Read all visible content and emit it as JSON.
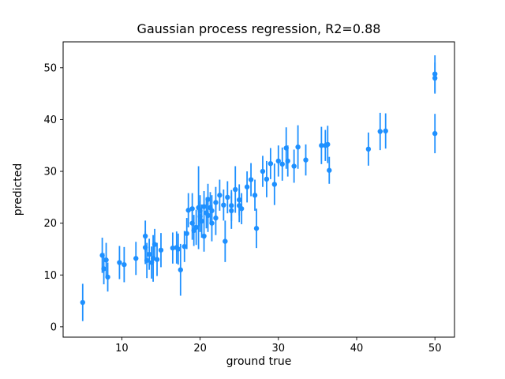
{
  "figure": {
    "background": "#ffffff"
  },
  "chart_data": {
    "type": "scatter",
    "title": "Gaussian process regression, R2=0.88",
    "xlabel": "ground true",
    "ylabel": "predicted",
    "marker_color": "#1E90FF",
    "error_bars": true,
    "grid": false,
    "xlim": [
      2.5,
      52.5
    ],
    "ylim": [
      -2,
      55
    ],
    "xticks": [
      10,
      20,
      30,
      40,
      50
    ],
    "yticks": [
      0,
      10,
      20,
      30,
      40,
      50
    ],
    "points": [
      {
        "x": 5.0,
        "y": 4.7,
        "err": 3.6
      },
      {
        "x": 7.5,
        "y": 13.8,
        "err": 3.4
      },
      {
        "x": 7.7,
        "y": 11.2,
        "err": 3.0
      },
      {
        "x": 8.0,
        "y": 12.9,
        "err": 3.3
      },
      {
        "x": 8.2,
        "y": 9.6,
        "err": 2.8
      },
      {
        "x": 9.7,
        "y": 12.4,
        "err": 3.2
      },
      {
        "x": 10.3,
        "y": 12.0,
        "err": 3.4
      },
      {
        "x": 11.8,
        "y": 13.2,
        "err": 3.2
      },
      {
        "x": 13.0,
        "y": 17.5,
        "err": 3.0
      },
      {
        "x": 13.0,
        "y": 15.3,
        "err": 3.2
      },
      {
        "x": 13.2,
        "y": 12.8,
        "err": 3.4
      },
      {
        "x": 13.5,
        "y": 14.0,
        "err": 3.0
      },
      {
        "x": 13.8,
        "y": 12.4,
        "err": 3.1
      },
      {
        "x": 14.0,
        "y": 13.2,
        "err": 4.5
      },
      {
        "x": 14.2,
        "y": 15.9,
        "err": 3.0
      },
      {
        "x": 14.5,
        "y": 13.0,
        "err": 3.2
      },
      {
        "x": 15.0,
        "y": 14.8,
        "err": 3.3
      },
      {
        "x": 16.5,
        "y": 15.2,
        "err": 3.0
      },
      {
        "x": 17.0,
        "y": 15.3,
        "err": 3.1
      },
      {
        "x": 17.2,
        "y": 15.0,
        "err": 3.0
      },
      {
        "x": 17.5,
        "y": 11.0,
        "err": 5.0
      },
      {
        "x": 18.0,
        "y": 15.5,
        "err": 3.0
      },
      {
        "x": 18.3,
        "y": 18.0,
        "err": 3.0
      },
      {
        "x": 18.5,
        "y": 22.5,
        "err": 3.3
      },
      {
        "x": 19.0,
        "y": 22.8,
        "err": 3.0
      },
      {
        "x": 19.0,
        "y": 20.0,
        "err": 3.2
      },
      {
        "x": 19.2,
        "y": 18.6,
        "err": 3.0
      },
      {
        "x": 19.8,
        "y": 23.0,
        "err": 8.0
      },
      {
        "x": 19.5,
        "y": 19.2,
        "err": 3.4
      },
      {
        "x": 20.0,
        "y": 22.4,
        "err": 3.0
      },
      {
        "x": 20.0,
        "y": 21.3,
        "err": 3.0
      },
      {
        "x": 20.2,
        "y": 20.4,
        "err": 3.2
      },
      {
        "x": 20.5,
        "y": 23.2,
        "err": 3.0
      },
      {
        "x": 20.5,
        "y": 17.5,
        "err": 3.0
      },
      {
        "x": 20.8,
        "y": 22.0,
        "err": 3.0
      },
      {
        "x": 21.0,
        "y": 24.6,
        "err": 3.0
      },
      {
        "x": 21.0,
        "y": 21.5,
        "err": 3.2
      },
      {
        "x": 21.3,
        "y": 23.0,
        "err": 3.0
      },
      {
        "x": 21.5,
        "y": 22.4,
        "err": 3.0
      },
      {
        "x": 21.5,
        "y": 20.0,
        "err": 3.5
      },
      {
        "x": 22.0,
        "y": 24.0,
        "err": 3.0
      },
      {
        "x": 22.0,
        "y": 21.0,
        "err": 3.3
      },
      {
        "x": 22.5,
        "y": 25.4,
        "err": 3.0
      },
      {
        "x": 23.0,
        "y": 23.5,
        "err": 3.0
      },
      {
        "x": 23.2,
        "y": 16.5,
        "err": 4.0
      },
      {
        "x": 23.5,
        "y": 25.0,
        "err": 3.1
      },
      {
        "x": 24.0,
        "y": 23.4,
        "err": 3.0
      },
      {
        "x": 24.0,
        "y": 22.4,
        "err": 3.5
      },
      {
        "x": 24.5,
        "y": 26.5,
        "err": 4.5
      },
      {
        "x": 25.0,
        "y": 24.5,
        "err": 3.0
      },
      {
        "x": 25.0,
        "y": 23.4,
        "err": 3.2
      },
      {
        "x": 25.3,
        "y": 22.8,
        "err": 3.0
      },
      {
        "x": 26.0,
        "y": 27.0,
        "err": 3.0
      },
      {
        "x": 26.5,
        "y": 28.4,
        "err": 3.2
      },
      {
        "x": 27.0,
        "y": 25.4,
        "err": 3.0
      },
      {
        "x": 27.2,
        "y": 19.0,
        "err": 3.8
      },
      {
        "x": 28.0,
        "y": 30.0,
        "err": 3.0
      },
      {
        "x": 28.5,
        "y": 28.5,
        "err": 3.5
      },
      {
        "x": 29.0,
        "y": 31.5,
        "err": 3.0
      },
      {
        "x": 29.5,
        "y": 27.5,
        "err": 4.0
      },
      {
        "x": 30.0,
        "y": 32.0,
        "err": 3.0
      },
      {
        "x": 30.5,
        "y": 31.4,
        "err": 3.2
      },
      {
        "x": 31.0,
        "y": 34.5,
        "err": 4.0
      },
      {
        "x": 31.2,
        "y": 32.0,
        "err": 3.0
      },
      {
        "x": 32.0,
        "y": 31.0,
        "err": 3.2
      },
      {
        "x": 32.5,
        "y": 34.7,
        "err": 4.2
      },
      {
        "x": 33.5,
        "y": 32.2,
        "err": 3.0
      },
      {
        "x": 35.5,
        "y": 35.0,
        "err": 3.6
      },
      {
        "x": 36.0,
        "y": 35.0,
        "err": 3.0
      },
      {
        "x": 36.3,
        "y": 35.2,
        "err": 3.6
      },
      {
        "x": 36.5,
        "y": 30.2,
        "err": 2.6
      },
      {
        "x": 41.5,
        "y": 34.3,
        "err": 3.2
      },
      {
        "x": 43.0,
        "y": 37.7,
        "err": 3.6
      },
      {
        "x": 43.7,
        "y": 37.8,
        "err": 3.4
      },
      {
        "x": 50.0,
        "y": 48.8,
        "err": 3.6
      },
      {
        "x": 50.0,
        "y": 48.0,
        "err": 3.0
      },
      {
        "x": 50.0,
        "y": 37.3,
        "err": 3.8
      }
    ]
  }
}
